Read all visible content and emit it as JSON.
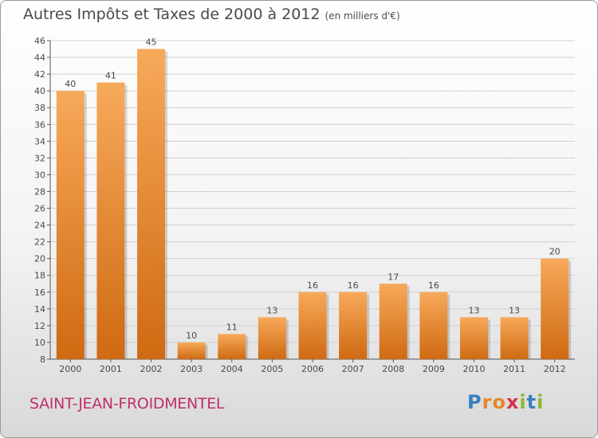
{
  "title": "Autres Impôts et Taxes de 2000 à 2012",
  "unit_label": "(en milliers d'€)",
  "commune": "SAINT-JEAN-FROIDMENTEL",
  "brand": {
    "letters": [
      "P",
      "r",
      "o",
      "x",
      "i",
      "t",
      "i"
    ],
    "colors": [
      "#3a7fc0",
      "#e8862a",
      "#e8862a",
      "#d62f4a",
      "#8ab832",
      "#3a7fc0",
      "#8ab832"
    ]
  },
  "colors": {
    "bar_top": "#f7a95a",
    "bar_bottom": "#cf6a12",
    "grid": "#d0d0d0",
    "axis": "#555555",
    "text": "#4a4a4a"
  },
  "chart_data": {
    "type": "bar",
    "title": "Autres Impôts et Taxes de 2000 à 2012",
    "categories": [
      "2000",
      "2001",
      "2002",
      "2003",
      "2004",
      "2005",
      "2006",
      "2007",
      "2008",
      "2009",
      "2010",
      "2011",
      "2012"
    ],
    "values": [
      40,
      41,
      45,
      10,
      11,
      13,
      16,
      16,
      17,
      16,
      13,
      13,
      20
    ],
    "data_labels": [
      "40",
      "41",
      "45",
      "10",
      "11",
      "13",
      "16",
      "16",
      "17",
      "16",
      "13",
      "13",
      "20"
    ],
    "ylim": [
      8,
      46
    ],
    "yticks": [
      8,
      10,
      12,
      14,
      16,
      18,
      20,
      22,
      24,
      26,
      28,
      30,
      32,
      34,
      36,
      38,
      40,
      42,
      44,
      46
    ],
    "grid": true
  }
}
